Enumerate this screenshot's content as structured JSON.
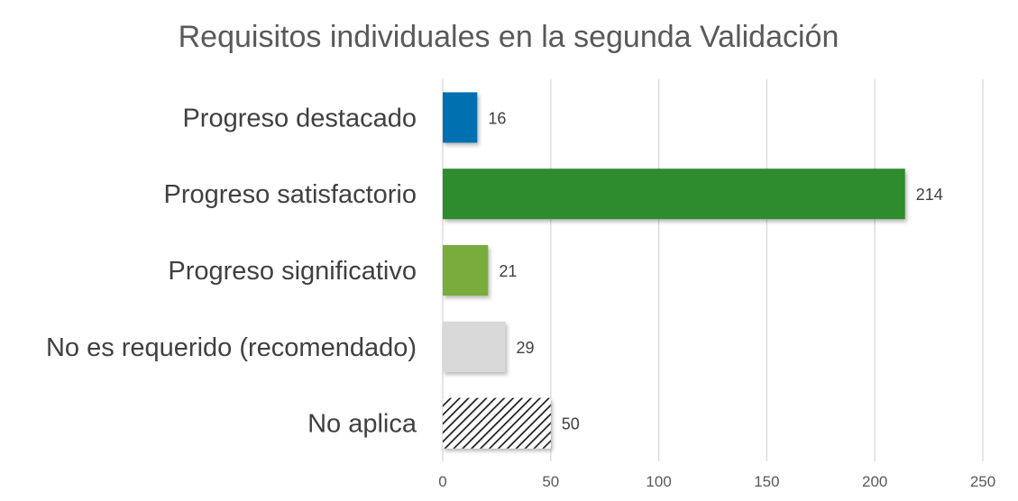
{
  "chart_data": {
    "type": "bar",
    "orientation": "horizontal",
    "title": "Requisitos individuales en la segunda Validación",
    "categories": [
      "Progreso destacado",
      "Progreso satisfactorio",
      "Progreso significativo",
      "No es requerido (recomendado)",
      "No aplica"
    ],
    "values": [
      16,
      214,
      21,
      29,
      50
    ],
    "data_labels": [
      "16",
      "214",
      "21",
      "29",
      "50"
    ],
    "bar_colors": [
      "#0070b0",
      "#2e8b2e",
      "#7aab3c",
      "#d9d9d9",
      "pattern-diagonal-black"
    ],
    "xlim": [
      0,
      250
    ],
    "xticks": [
      0,
      50,
      100,
      150,
      200,
      250
    ],
    "xtick_labels": [
      "0",
      "50",
      "100",
      "150",
      "200",
      "250"
    ],
    "xlabel": "",
    "ylabel": "",
    "grid": true,
    "legend": "none"
  }
}
